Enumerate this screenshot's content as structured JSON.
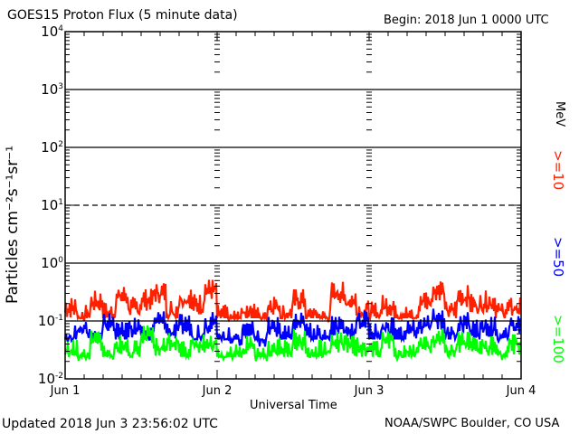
{
  "chart_data": {
    "type": "line",
    "title": "GOES15 Proton Flux (5 minute data)",
    "begin_label": "Begin: 2018 Jun 1 0000 UTC",
    "xlabel": "Universal Time",
    "ylabel": "Particles cm⁻²s⁻¹sr⁻¹",
    "unit_label": "MeV",
    "y_scale": "log",
    "ylim": [
      0.01,
      10000
    ],
    "y_ticks": [
      {
        "base": "10",
        "exp": "4"
      },
      {
        "base": "10",
        "exp": "3"
      },
      {
        "base": "10",
        "exp": "2"
      },
      {
        "base": "10",
        "exp": "1"
      },
      {
        "base": "10",
        "exp": "0"
      },
      {
        "base": "10",
        "exp": "-1"
      },
      {
        "base": "10",
        "exp": "-2"
      }
    ],
    "x_range_days": [
      0,
      3
    ],
    "x_ticks": [
      "Jun 1",
      "Jun 2",
      "Jun 3",
      "Jun 4"
    ],
    "reference_lines": [
      1000,
      100,
      10,
      1,
      0.1
    ],
    "x_interval_hours": 2,
    "series": [
      {
        "name": ">=10",
        "color": "#ff2000",
        "values": [
          0.22,
          0.16,
          0.28,
          0.18,
          0.35,
          0.22,
          0.3,
          0.4,
          0.2,
          0.33,
          0.25,
          0.45,
          0.16,
          0.14,
          0.2,
          0.15,
          0.25,
          0.18,
          0.3,
          0.16,
          0.14,
          0.4,
          0.3,
          0.2,
          0.18,
          0.24,
          0.16,
          0.15,
          0.3,
          0.45,
          0.2,
          0.35,
          0.25,
          0.28,
          0.2,
          0.22
        ]
      },
      {
        "name": ">=50",
        "color": "#0000ff",
        "values": [
          0.07,
          0.1,
          0.06,
          0.12,
          0.08,
          0.1,
          0.07,
          0.13,
          0.09,
          0.11,
          0.08,
          0.12,
          0.07,
          0.06,
          0.09,
          0.06,
          0.1,
          0.07,
          0.12,
          0.08,
          0.07,
          0.11,
          0.09,
          0.13,
          0.08,
          0.1,
          0.07,
          0.09,
          0.11,
          0.14,
          0.08,
          0.12,
          0.09,
          0.1,
          0.07,
          0.11
        ]
      },
      {
        "name": ">=100",
        "color": "#00ff00",
        "values": [
          0.04,
          0.03,
          0.06,
          0.035,
          0.05,
          0.04,
          0.07,
          0.045,
          0.06,
          0.04,
          0.055,
          0.05,
          0.03,
          0.035,
          0.05,
          0.03,
          0.045,
          0.04,
          0.06,
          0.035,
          0.04,
          0.055,
          0.05,
          0.045,
          0.04,
          0.06,
          0.035,
          0.04,
          0.05,
          0.065,
          0.04,
          0.055,
          0.045,
          0.05,
          0.035,
          0.05
        ]
      }
    ]
  },
  "footer": {
    "updated": "Updated 2018 Jun  3 23:56:02 UTC",
    "credit": "NOAA/SWPC Boulder, CO USA"
  }
}
